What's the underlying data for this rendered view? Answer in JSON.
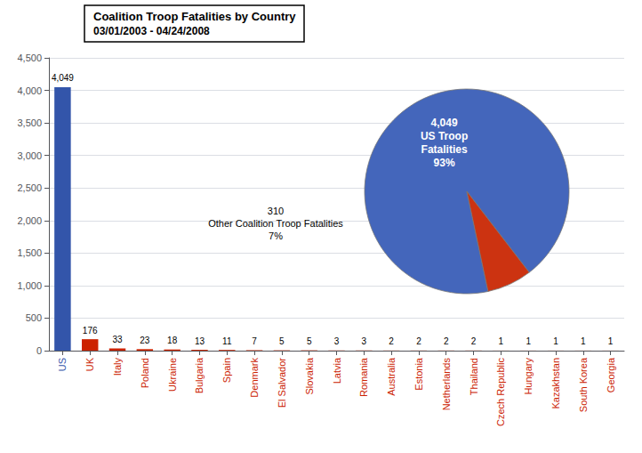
{
  "chart_data": [
    {
      "type": "bar",
      "title": "Coalition Troop Fatalities by Country",
      "subtitle": "03/01/2003 - 04/24/2008",
      "categories": [
        "US",
        "UK",
        "Italy",
        "Poland",
        "Ukraine",
        "Bulgaria",
        "Spain",
        "Denmark",
        "El Salvador",
        "Slovakia",
        "Latvia",
        "Romania",
        "Australia",
        "Estonia",
        "Netherlands",
        "Thailand",
        "Czech Republic",
        "Hungary",
        "Kazakhstan",
        "South Korea",
        "Georgia"
      ],
      "values": [
        4049,
        176,
        33,
        23,
        18,
        13,
        11,
        7,
        5,
        5,
        3,
        3,
        2,
        2,
        2,
        2,
        1,
        1,
        1,
        1,
        1
      ],
      "value_labels": [
        "4,049",
        "176",
        "33",
        "23",
        "18",
        "13",
        "11",
        "7",
        "5",
        "5",
        "3",
        "3",
        "2",
        "2",
        "2",
        "2",
        "1",
        "1",
        "1",
        "1",
        "1"
      ],
      "colors": [
        "#3355aa",
        "#cc2200",
        "#cc2200",
        "#cc2200",
        "#cc2200",
        "#cc2200",
        "#cc2200",
        "#cc2200",
        "#cc2200",
        "#cc2200",
        "#cc2200",
        "#cc2200",
        "#cc2200",
        "#cc2200",
        "#cc2200",
        "#cc2200",
        "#cc2200",
        "#cc2200",
        "#cc2200",
        "#cc2200",
        "#cc2200"
      ],
      "ylim": [
        0,
        4500
      ],
      "yticks": [
        0,
        500,
        {
          "value": 1000,
          "label": "1,000"
        },
        {
          "value": 1500,
          "label": "1,500"
        },
        {
          "value": 2000,
          "label": "2,000"
        },
        {
          "value": 2500,
          "label": "2,500"
        },
        {
          "value": 3000,
          "label": "3,000"
        },
        {
          "value": 3500,
          "label": "3,500"
        },
        {
          "value": 4000,
          "label": "4,000"
        },
        {
          "value": 4500,
          "label": "4,500"
        }
      ],
      "grid": true,
      "data_labels": true
    },
    {
      "type": "pie",
      "values": [
        4049,
        310
      ],
      "value_labels": [
        "4,049\nUS Troop\nFatalities\n93%",
        "310\nOther Coalition Troop Fatalities\n7%"
      ],
      "colors": [
        "#4466bb",
        "#cc3311"
      ],
      "data_labels": true
    }
  ]
}
